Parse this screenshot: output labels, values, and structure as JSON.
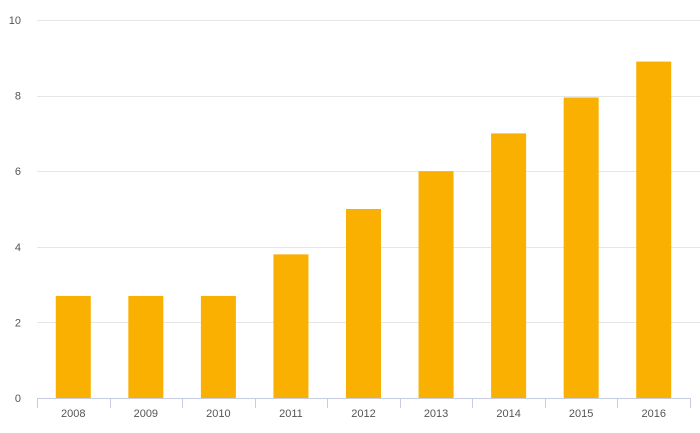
{
  "chart_data": {
    "type": "bar",
    "title": "",
    "xlabel": "",
    "ylabel": "",
    "categories": [
      "2008",
      "2009",
      "2010",
      "2011",
      "2012",
      "2013",
      "2014",
      "2015",
      "2016"
    ],
    "values": [
      2.7,
      2.7,
      2.7,
      3.8,
      5.0,
      6.0,
      7.0,
      7.95,
      8.9
    ],
    "ylim": [
      0,
      10
    ],
    "yticks": [
      0,
      2,
      4,
      6,
      8,
      10
    ],
    "grid": true,
    "legend": "none",
    "colors": {
      "bar": "#F9B000",
      "grid": "#E6E6E6",
      "axis": "#C8CCE0",
      "text": "#555555"
    }
  }
}
